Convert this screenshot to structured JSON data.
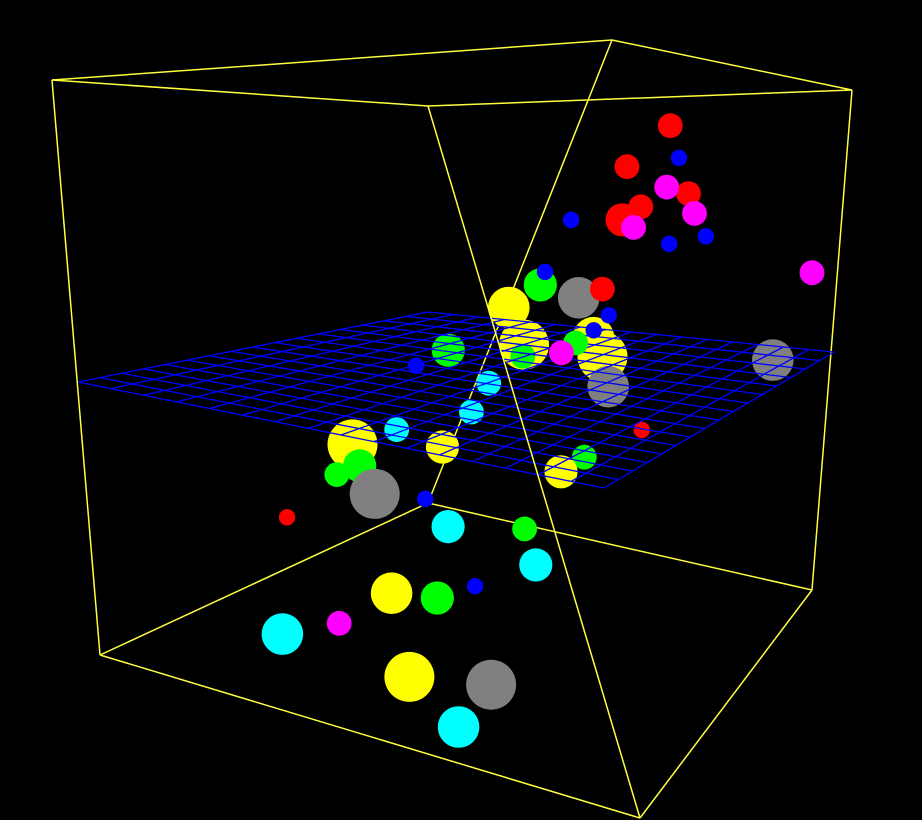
{
  "chart_data": {
    "type": "scatter",
    "dimensions": 3,
    "title": "",
    "background_color": "#000000",
    "box_color": "#ffff40",
    "plane_color": "#0000ff",
    "plane_z": 0.5,
    "plane_grid_divisions": 16,
    "axis_ranges": {
      "x": [
        0,
        1
      ],
      "y": [
        0,
        1
      ],
      "z": [
        0,
        1
      ]
    },
    "grid": false,
    "legend": "none",
    "category_colors": {
      "red": "#ff0000",
      "blue": "#0000ff",
      "magenta": "#ff00ff",
      "green": "#00ff00",
      "yellow": "#ffff00",
      "cyan": "#00ffff",
      "gray": "#808080"
    },
    "points": [
      {
        "x": 0.36,
        "y": 0.02,
        "z": 0.86,
        "size": 2,
        "category": "red"
      },
      {
        "x": 0.42,
        "y": 0.02,
        "z": 0.8,
        "size": 1,
        "category": "blue"
      },
      {
        "x": 0.34,
        "y": 0.08,
        "z": 0.78,
        "size": 2,
        "category": "red"
      },
      {
        "x": 0.46,
        "y": 0.06,
        "z": 0.75,
        "size": 2,
        "category": "magenta"
      },
      {
        "x": 0.51,
        "y": 0.04,
        "z": 0.74,
        "size": 2,
        "category": "red"
      },
      {
        "x": 0.47,
        "y": 0.12,
        "z": 0.72,
        "size": 2,
        "category": "red"
      },
      {
        "x": 0.57,
        "y": 0.06,
        "z": 0.71,
        "size": 2,
        "category": "magenta"
      },
      {
        "x": 0.47,
        "y": 0.16,
        "z": 0.7,
        "size": 3,
        "category": "red"
      },
      {
        "x": 0.51,
        "y": 0.16,
        "z": 0.69,
        "size": 2,
        "category": "magenta"
      },
      {
        "x": 0.31,
        "y": 0.16,
        "z": 0.68,
        "size": 1,
        "category": "blue"
      },
      {
        "x": 0.62,
        "y": 0.06,
        "z": 0.67,
        "size": 1,
        "category": "blue"
      },
      {
        "x": 0.58,
        "y": 0.12,
        "z": 0.66,
        "size": 1,
        "category": "blue"
      },
      {
        "x": 0.97,
        "y": 0.05,
        "z": 0.64,
        "size": 2,
        "category": "magenta"
      },
      {
        "x": 0.37,
        "y": 0.25,
        "z": 0.6,
        "size": 1,
        "category": "blue"
      },
      {
        "x": 0.51,
        "y": 0.22,
        "z": 0.58,
        "size": 2,
        "category": "red"
      },
      {
        "x": 0.19,
        "y": 0.1,
        "z": 0.52,
        "size": 3,
        "category": "green"
      },
      {
        "x": 0.4,
        "y": 0.18,
        "z": 0.54,
        "size": 4,
        "category": "gray"
      },
      {
        "x": 0.62,
        "y": 0.3,
        "z": 0.56,
        "size": 1,
        "category": "blue"
      },
      {
        "x": 0.62,
        "y": 0.34,
        "z": 0.54,
        "size": 1,
        "category": "blue"
      },
      {
        "x": 0.63,
        "y": 0.4,
        "z": 0.53,
        "size": 2,
        "category": "green"
      },
      {
        "x": 0.63,
        "y": 0.44,
        "z": 0.52,
        "size": 2,
        "category": "magenta"
      },
      {
        "x": 0.14,
        "y": 0.12,
        "z": 0.47,
        "size": 4,
        "category": "yellow"
      },
      {
        "x": 0.33,
        "y": 0.24,
        "z": 0.45,
        "size": 5,
        "category": "yellow"
      },
      {
        "x": 0.46,
        "y": 0.18,
        "z": 0.47,
        "size": 4,
        "category": "yellow"
      },
      {
        "x": 0.55,
        "y": 0.24,
        "z": 0.46,
        "size": 5,
        "category": "yellow"
      },
      {
        "x": 0.68,
        "y": 0.36,
        "z": 0.45,
        "size": 4,
        "category": "gray"
      },
      {
        "x": 0.93,
        "y": 0.12,
        "z": 0.48,
        "size": 4,
        "category": "gray"
      },
      {
        "x": 0.27,
        "y": 0.38,
        "z": 0.46,
        "size": 3,
        "category": "green"
      },
      {
        "x": 0.39,
        "y": 0.3,
        "z": 0.45,
        "size": 2,
        "category": "green"
      },
      {
        "x": 0.42,
        "y": 0.42,
        "z": 0.43,
        "size": 2,
        "category": "cyan"
      },
      {
        "x": 0.25,
        "y": 0.44,
        "z": 0.44,
        "size": 1,
        "category": "blue"
      },
      {
        "x": 0.8,
        "y": 0.4,
        "z": 0.4,
        "size": 1,
        "category": "red"
      },
      {
        "x": 0.45,
        "y": 0.5,
        "z": 0.4,
        "size": 2,
        "category": "cyan"
      },
      {
        "x": 0.48,
        "y": 0.62,
        "z": 0.37,
        "size": 3,
        "category": "yellow"
      },
      {
        "x": 0.73,
        "y": 0.58,
        "z": 0.36,
        "size": 3,
        "category": "yellow"
      },
      {
        "x": 0.76,
        "y": 0.54,
        "z": 0.38,
        "size": 2,
        "category": "green"
      },
      {
        "x": 0.32,
        "y": 0.56,
        "z": 0.36,
        "size": 2,
        "category": "cyan"
      },
      {
        "x": 0.25,
        "y": 0.6,
        "z": 0.33,
        "size": 5,
        "category": "yellow"
      },
      {
        "x": 0.3,
        "y": 0.64,
        "z": 0.31,
        "size": 3,
        "category": "green"
      },
      {
        "x": 0.28,
        "y": 0.68,
        "z": 0.3,
        "size": 2,
        "category": "green"
      },
      {
        "x": 0.38,
        "y": 0.7,
        "z": 0.29,
        "size": 5,
        "category": "gray"
      },
      {
        "x": 0.51,
        "y": 0.72,
        "z": 0.31,
        "size": 1,
        "category": "blue"
      },
      {
        "x": 0.57,
        "y": 0.74,
        "z": 0.28,
        "size": 3,
        "category": "cyan"
      },
      {
        "x": 0.73,
        "y": 0.72,
        "z": 0.3,
        "size": 2,
        "category": "green"
      },
      {
        "x": 0.77,
        "y": 0.76,
        "z": 0.26,
        "size": 3,
        "category": "cyan"
      },
      {
        "x": 0.26,
        "y": 0.8,
        "z": 0.25,
        "size": 1,
        "category": "red"
      },
      {
        "x": 0.68,
        "y": 0.84,
        "z": 0.23,
        "size": 1,
        "category": "blue"
      },
      {
        "x": 0.62,
        "y": 0.88,
        "z": 0.21,
        "size": 3,
        "category": "green"
      },
      {
        "x": 0.51,
        "y": 0.86,
        "z": 0.19,
        "size": 4,
        "category": "yellow"
      },
      {
        "x": 0.43,
        "y": 0.92,
        "z": 0.14,
        "size": 2,
        "category": "magenta"
      },
      {
        "x": 0.35,
        "y": 0.98,
        "z": 0.12,
        "size": 4,
        "category": "cyan"
      },
      {
        "x": 0.58,
        "y": 0.96,
        "z": 0.1,
        "size": 5,
        "category": "yellow"
      },
      {
        "x": 0.71,
        "y": 0.9,
        "z": 0.1,
        "size": 5,
        "category": "gray"
      },
      {
        "x": 0.67,
        "y": 0.98,
        "z": 0.05,
        "size": 4,
        "category": "cyan"
      }
    ]
  }
}
